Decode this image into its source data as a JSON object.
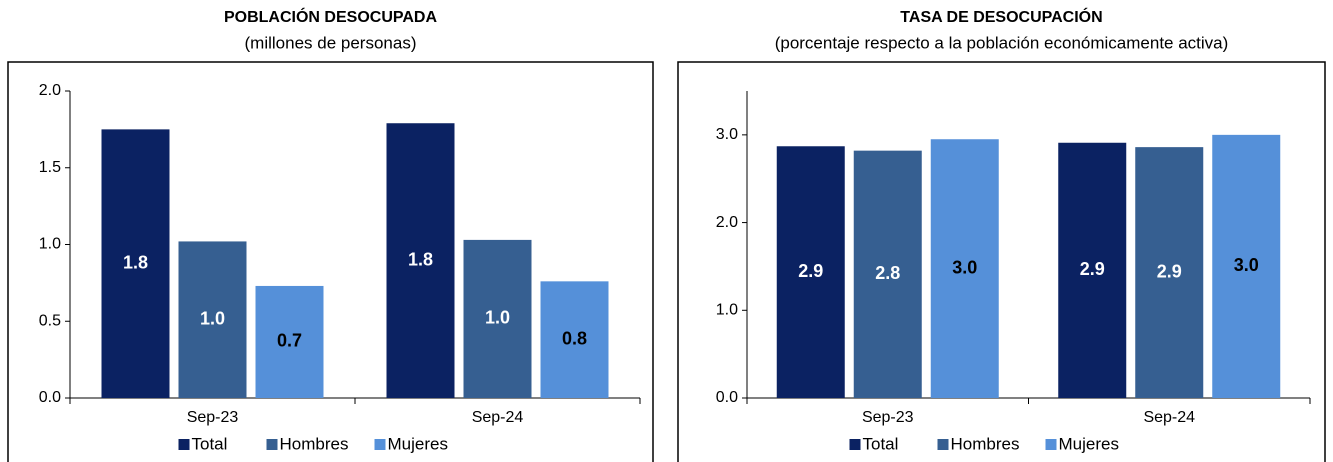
{
  "chart_data": [
    {
      "type": "bar",
      "title": "POBLACIÓN DESOCUPADA",
      "subtitle": "(millones de personas)",
      "categories": [
        "Sep-23",
        "Sep-24"
      ],
      "series": [
        {
          "name": "Total",
          "color": "#0b2262",
          "label_color": "#ffffff",
          "values": [
            1.75,
            1.79
          ],
          "value_labels": [
            "1.8",
            "1.8"
          ]
        },
        {
          "name": "Hombres",
          "color": "#365f91",
          "label_color": "#ffffff",
          "values": [
            1.02,
            1.03
          ],
          "value_labels": [
            "1.0",
            "1.0"
          ]
        },
        {
          "name": "Mujeres",
          "color": "#5590d9",
          "label_color": "#000000",
          "values": [
            0.73,
            0.76
          ],
          "value_labels": [
            "0.7",
            "0.8"
          ]
        }
      ],
      "ylim": [
        0,
        2
      ],
      "yticks": [
        {
          "value": 0,
          "label": "0.0"
        },
        {
          "value": 0.5,
          "label": "0.5"
        },
        {
          "value": 1,
          "label": "1.0"
        },
        {
          "value": 1.5,
          "label": "1.5"
        },
        {
          "value": 2,
          "label": "2.0"
        }
      ],
      "legend": "bottom"
    },
    {
      "type": "bar",
      "title": "TASA DE DESOCUPACIÓN",
      "subtitle": "(porcentaje respecto a la población económicamente activa)",
      "categories": [
        "Sep-23",
        "Sep-24"
      ],
      "series": [
        {
          "name": "Total",
          "color": "#0b2262",
          "label_color": "#ffffff",
          "values": [
            2.87,
            2.91
          ],
          "value_labels": [
            "2.9",
            "2.9"
          ]
        },
        {
          "name": "Hombres",
          "color": "#365f91",
          "label_color": "#ffffff",
          "values": [
            2.82,
            2.86
          ],
          "value_labels": [
            "2.8",
            "2.9"
          ]
        },
        {
          "name": "Mujeres",
          "color": "#5590d9",
          "label_color": "#000000",
          "values": [
            2.95,
            3.0
          ],
          "value_labels": [
            "3.0",
            "3.0"
          ]
        }
      ],
      "ylim": [
        0,
        3.5
      ],
      "yticks": [
        {
          "value": 0,
          "label": "0.0"
        },
        {
          "value": 1,
          "label": "1.0"
        },
        {
          "value": 2,
          "label": "2.0"
        },
        {
          "value": 3,
          "label": "3.0"
        }
      ],
      "legend": "bottom"
    }
  ]
}
